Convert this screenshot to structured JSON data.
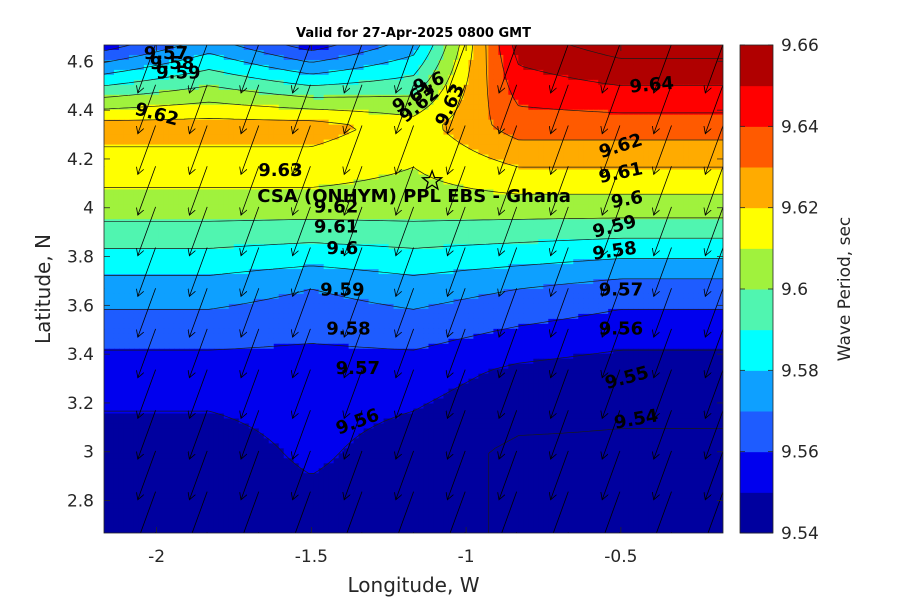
{
  "chart_data": {
    "type": "heatmap",
    "title": "Valid for 27-Apr-2025 0800 GMT",
    "xlabel": "Longitude, W",
    "ylabel": "Latitude, N",
    "colorbar_label": "Wave Period, sec",
    "xlim": [
      -2.17,
      -0.17
    ],
    "ylim": [
      2.667,
      4.667
    ],
    "x_ticks": [
      -2,
      -1.5,
      -1,
      -0.5
    ],
    "x_tick_labels": [
      "-2",
      "-1.5",
      "-1",
      "-0.5"
    ],
    "y_ticks": [
      2.8,
      3.0,
      3.2,
      3.4,
      3.6,
      3.8,
      4.0,
      4.2,
      4.4,
      4.6
    ],
    "y_tick_labels": [
      "2.8",
      "3",
      "3.2",
      "3.4",
      "3.6",
      "3.8",
      "4",
      "4.2",
      "4.4",
      "4.6"
    ],
    "colorbar_ticks": [
      9.54,
      9.56,
      9.58,
      9.6,
      9.62,
      9.64,
      9.66
    ],
    "colorbar_tick_labels": [
      "9.54",
      "9.56",
      "9.58",
      "9.6",
      "9.62",
      "9.64",
      "9.66"
    ],
    "levels": [
      9.54,
      9.55,
      9.56,
      9.57,
      9.58,
      9.59,
      9.6,
      9.61,
      9.62,
      9.63,
      9.64,
      9.65,
      9.66
    ],
    "level_colors": [
      "#00009f",
      "#0000ee",
      "#1e5cff",
      "#0ea0ff",
      "#00ffff",
      "#50f5b0",
      "#a0f23d",
      "#ffff00",
      "#ffab00",
      "#ff5a00",
      "#ff0000",
      "#b00000"
    ],
    "grid_lon": [
      -2.17,
      -1.83,
      -1.5,
      -1.17,
      -0.83,
      -0.5,
      -0.17
    ],
    "grid_lat": [
      2.667,
      3.0,
      3.333,
      3.667,
      4.0,
      4.333,
      4.667
    ],
    "values": [
      [
        9.545,
        9.545,
        9.545,
        9.545,
        9.538,
        9.538,
        9.538
      ],
      [
        9.545,
        9.545,
        9.552,
        9.545,
        9.538,
        9.538,
        9.538
      ],
      [
        9.555,
        9.555,
        9.555,
        9.555,
        9.548,
        9.545,
        9.545
      ],
      [
        9.575,
        9.575,
        9.57,
        9.575,
        9.57,
        9.565,
        9.565
      ],
      [
        9.605,
        9.605,
        9.605,
        9.605,
        9.605,
        9.605,
        9.605
      ],
      [
        9.625,
        9.625,
        9.625,
        9.615,
        9.635,
        9.635,
        9.635
      ],
      [
        9.555,
        9.575,
        9.555,
        9.575,
        9.655,
        9.665,
        9.665
      ]
    ],
    "wave_direction_deg_from_north": 200,
    "contour_labels": [
      {
        "text": "9.57",
        "lon": -1.97,
        "lat": 4.63,
        "rot": 0
      },
      {
        "text": "9.58",
        "lon": -1.95,
        "lat": 4.59,
        "rot": 0
      },
      {
        "text": "9.59",
        "lon": -1.93,
        "lat": 4.55,
        "rot": 0
      },
      {
        "text": "9.62",
        "lon": -2.0,
        "lat": 4.38,
        "rot": 15
      },
      {
        "text": "9.6",
        "lon": -1.12,
        "lat": 4.51,
        "rot": -20
      },
      {
        "text": "9.61",
        "lon": -1.17,
        "lat": 4.45,
        "rot": -30
      },
      {
        "text": "9.62",
        "lon": -1.15,
        "lat": 4.42,
        "rot": -40
      },
      {
        "text": "9.63",
        "lon": -1.05,
        "lat": 4.42,
        "rot": -65
      },
      {
        "text": "9.64",
        "lon": -0.4,
        "lat": 4.5,
        "rot": -5
      },
      {
        "text": "9.63",
        "lon": -1.6,
        "lat": 4.15,
        "rot": 0
      },
      {
        "text": "9.62",
        "lon": -0.5,
        "lat": 4.25,
        "rot": -18
      },
      {
        "text": "9.61",
        "lon": -0.5,
        "lat": 4.14,
        "rot": -12
      },
      {
        "text": "9.62",
        "lon": -1.42,
        "lat": 4.0,
        "rot": 0
      },
      {
        "text": "9.6",
        "lon": -0.48,
        "lat": 4.03,
        "rot": -10
      },
      {
        "text": "9.61",
        "lon": -1.42,
        "lat": 3.92,
        "rot": 0
      },
      {
        "text": "9.59",
        "lon": -0.52,
        "lat": 3.92,
        "rot": -15
      },
      {
        "text": "9.6",
        "lon": -1.4,
        "lat": 3.83,
        "rot": 0
      },
      {
        "text": "9.58",
        "lon": -0.52,
        "lat": 3.82,
        "rot": -8
      },
      {
        "text": "9.59",
        "lon": -1.4,
        "lat": 3.66,
        "rot": 0
      },
      {
        "text": "9.57",
        "lon": -0.5,
        "lat": 3.66,
        "rot": 0
      },
      {
        "text": "9.58",
        "lon": -1.38,
        "lat": 3.5,
        "rot": 0
      },
      {
        "text": "9.56",
        "lon": -0.5,
        "lat": 3.5,
        "rot": 0
      },
      {
        "text": "9.57",
        "lon": -1.35,
        "lat": 3.34,
        "rot": 0
      },
      {
        "text": "9.55",
        "lon": -0.48,
        "lat": 3.3,
        "rot": -15
      },
      {
        "text": "9.56",
        "lon": -1.35,
        "lat": 3.12,
        "rot": -20
      },
      {
        "text": "9.54",
        "lon": -0.45,
        "lat": 3.13,
        "rot": -10
      }
    ],
    "site": {
      "name": "CSA (ONHYM) PPL EBS  - Ghana",
      "lon": -1.11,
      "lat": 4.11
    }
  }
}
